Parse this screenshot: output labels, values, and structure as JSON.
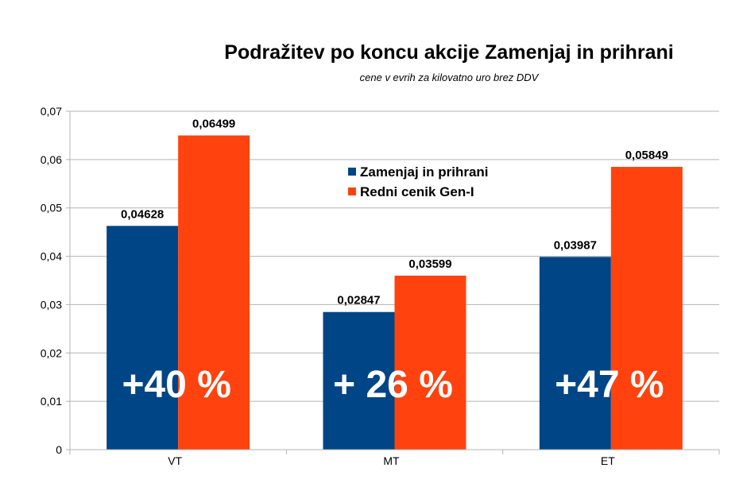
{
  "chart_data": {
    "type": "bar",
    "title": "Podražitev po koncu akcije Zamenjaj in prihrani",
    "subtitle": "cene v evrih za kilovatno uro brez DDV",
    "categories": [
      "VT",
      "MT",
      "ET"
    ],
    "series": [
      {
        "name": "Zamenjaj in prihrani",
        "color": "#004586",
        "values": [
          0.04628,
          0.02847,
          0.03987
        ],
        "labels": [
          "0,04628",
          "0,02847",
          "0,03987"
        ]
      },
      {
        "name": "Redni cenik Gen-I",
        "color": "#ff420e",
        "values": [
          0.06499,
          0.03599,
          0.05849
        ],
        "labels": [
          "0,06499",
          "0,03599",
          "0,05849"
        ]
      }
    ],
    "annotations": [
      "+40 %",
      "+ 26 %",
      "+47 %"
    ],
    "ylim": [
      0,
      0.07
    ],
    "yticks": [
      "0",
      "0,01",
      "0,02",
      "0,03",
      "0,04",
      "0,05",
      "0,06",
      "0,07"
    ],
    "grid": true,
    "legend": "top-center (inside plot)",
    "xlabel": "",
    "ylabel": ""
  }
}
